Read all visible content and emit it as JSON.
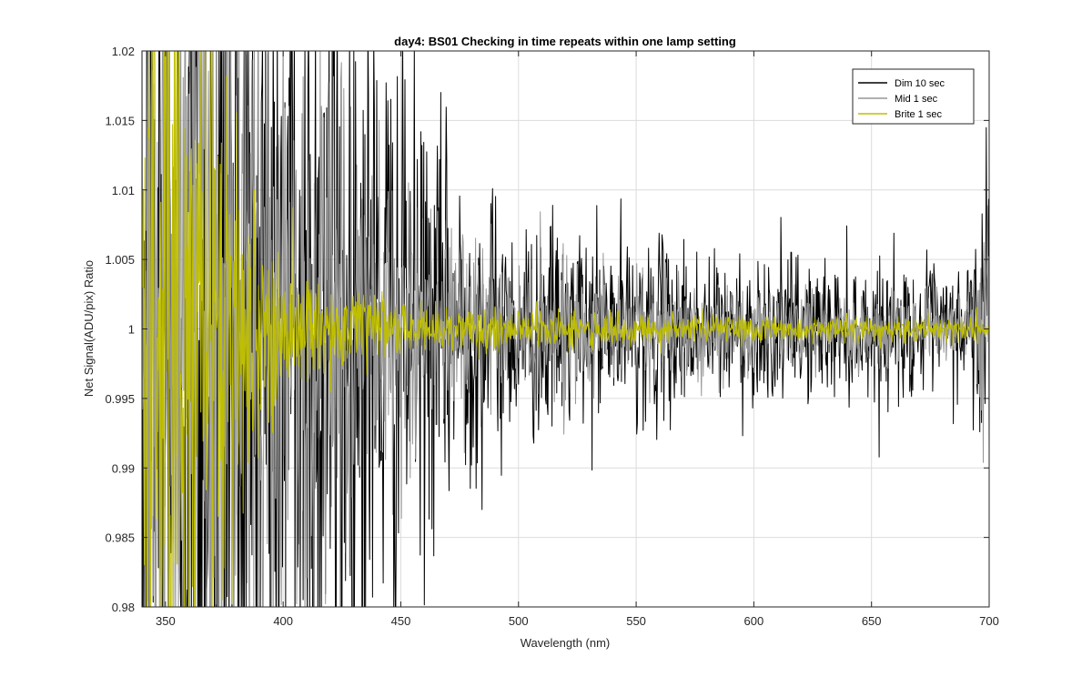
{
  "chart_data": {
    "type": "line",
    "title": "day4: BS01  Checking in time repeats within one lamp setting",
    "xlabel": "Wavelength (nm)",
    "ylabel": "Net Signal(ADU/pix) Ratio",
    "xlim": [
      340,
      700
    ],
    "ylim": [
      0.98,
      1.02
    ],
    "x_ticks": [
      350,
      400,
      450,
      500,
      550,
      600,
      650,
      700
    ],
    "y_ticks": [
      0.98,
      0.985,
      0.99,
      0.995,
      1,
      1.005,
      1.01,
      1.015,
      1.02
    ],
    "x_tick_labels": [
      "350",
      "400",
      "450",
      "500",
      "550",
      "600",
      "650",
      "700"
    ],
    "y_tick_labels": [
      "0.98",
      "0.985",
      "0.99",
      "0.995",
      "1",
      "1.005",
      "1.01",
      "1.015",
      "1.02"
    ],
    "grid": true,
    "legend_position": "top-right",
    "series": [
      {
        "name": "Dim 10 sec",
        "color": "#000000",
        "envelope_x": [
          340,
          380,
          420,
          440,
          460,
          480,
          500,
          550,
          600,
          650,
          690,
          700
        ],
        "envelope_halfwidth": [
          0.06,
          0.05,
          0.035,
          0.025,
          0.016,
          0.011,
          0.008,
          0.0065,
          0.0055,
          0.0048,
          0.0045,
          0.02
        ]
      },
      {
        "name": "Mid 1 sec",
        "color": "#969696",
        "envelope_x": [
          340,
          380,
          420,
          440,
          460,
          480,
          500,
          550,
          600,
          650,
          690,
          700
        ],
        "envelope_halfwidth": [
          0.05,
          0.035,
          0.02,
          0.013,
          0.009,
          0.0065,
          0.005,
          0.0038,
          0.003,
          0.0026,
          0.0025,
          0.012
        ]
      },
      {
        "name": "Brite 1 sec",
        "color": "#bfbf00",
        "envelope_x": [
          340,
          360,
          380,
          400,
          420,
          440,
          460,
          480,
          500,
          550,
          600,
          650,
          690,
          700
        ],
        "envelope_halfwidth": [
          0.04,
          0.03,
          0.014,
          0.005,
          0.0035,
          0.0026,
          0.002,
          0.0017,
          0.0015,
          0.0012,
          0.001,
          0.0009,
          0.0009,
          0.0015
        ]
      }
    ]
  }
}
